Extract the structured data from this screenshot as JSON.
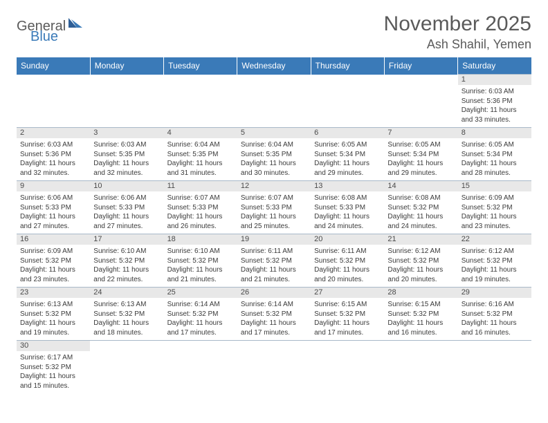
{
  "logo": {
    "main": "General",
    "accent": "Blue"
  },
  "title": "November 2025",
  "location": "Ash Shahil, Yemen",
  "colors": {
    "header_bg": "#3a7ab8",
    "header_text": "#ffffff",
    "daynum_bg": "#e8e8e8",
    "body_text": "#3a3a3a",
    "title_text": "#5a5a5a",
    "grid_line": "#a8b8c8",
    "page_bg": "#ffffff"
  },
  "typography": {
    "title_fontsize": 30,
    "location_fontsize": 18,
    "dayheader_fontsize": 12,
    "daynum_fontsize": 11,
    "body_fontsize": 10,
    "logo_fontsize": 20
  },
  "day_headers": [
    "Sunday",
    "Monday",
    "Tuesday",
    "Wednesday",
    "Thursday",
    "Friday",
    "Saturday"
  ],
  "weeks": [
    [
      null,
      null,
      null,
      null,
      null,
      null,
      {
        "n": "1",
        "sr": "Sunrise: 6:03 AM",
        "ss": "Sunset: 5:36 PM",
        "d1": "Daylight: 11 hours",
        "d2": "and 33 minutes."
      }
    ],
    [
      {
        "n": "2",
        "sr": "Sunrise: 6:03 AM",
        "ss": "Sunset: 5:36 PM",
        "d1": "Daylight: 11 hours",
        "d2": "and 32 minutes."
      },
      {
        "n": "3",
        "sr": "Sunrise: 6:03 AM",
        "ss": "Sunset: 5:35 PM",
        "d1": "Daylight: 11 hours",
        "d2": "and 32 minutes."
      },
      {
        "n": "4",
        "sr": "Sunrise: 6:04 AM",
        "ss": "Sunset: 5:35 PM",
        "d1": "Daylight: 11 hours",
        "d2": "and 31 minutes."
      },
      {
        "n": "5",
        "sr": "Sunrise: 6:04 AM",
        "ss": "Sunset: 5:35 PM",
        "d1": "Daylight: 11 hours",
        "d2": "and 30 minutes."
      },
      {
        "n": "6",
        "sr": "Sunrise: 6:05 AM",
        "ss": "Sunset: 5:34 PM",
        "d1": "Daylight: 11 hours",
        "d2": "and 29 minutes."
      },
      {
        "n": "7",
        "sr": "Sunrise: 6:05 AM",
        "ss": "Sunset: 5:34 PM",
        "d1": "Daylight: 11 hours",
        "d2": "and 29 minutes."
      },
      {
        "n": "8",
        "sr": "Sunrise: 6:05 AM",
        "ss": "Sunset: 5:34 PM",
        "d1": "Daylight: 11 hours",
        "d2": "and 28 minutes."
      }
    ],
    [
      {
        "n": "9",
        "sr": "Sunrise: 6:06 AM",
        "ss": "Sunset: 5:33 PM",
        "d1": "Daylight: 11 hours",
        "d2": "and 27 minutes."
      },
      {
        "n": "10",
        "sr": "Sunrise: 6:06 AM",
        "ss": "Sunset: 5:33 PM",
        "d1": "Daylight: 11 hours",
        "d2": "and 27 minutes."
      },
      {
        "n": "11",
        "sr": "Sunrise: 6:07 AM",
        "ss": "Sunset: 5:33 PM",
        "d1": "Daylight: 11 hours",
        "d2": "and 26 minutes."
      },
      {
        "n": "12",
        "sr": "Sunrise: 6:07 AM",
        "ss": "Sunset: 5:33 PM",
        "d1": "Daylight: 11 hours",
        "d2": "and 25 minutes."
      },
      {
        "n": "13",
        "sr": "Sunrise: 6:08 AM",
        "ss": "Sunset: 5:33 PM",
        "d1": "Daylight: 11 hours",
        "d2": "and 24 minutes."
      },
      {
        "n": "14",
        "sr": "Sunrise: 6:08 AM",
        "ss": "Sunset: 5:32 PM",
        "d1": "Daylight: 11 hours",
        "d2": "and 24 minutes."
      },
      {
        "n": "15",
        "sr": "Sunrise: 6:09 AM",
        "ss": "Sunset: 5:32 PM",
        "d1": "Daylight: 11 hours",
        "d2": "and 23 minutes."
      }
    ],
    [
      {
        "n": "16",
        "sr": "Sunrise: 6:09 AM",
        "ss": "Sunset: 5:32 PM",
        "d1": "Daylight: 11 hours",
        "d2": "and 23 minutes."
      },
      {
        "n": "17",
        "sr": "Sunrise: 6:10 AM",
        "ss": "Sunset: 5:32 PM",
        "d1": "Daylight: 11 hours",
        "d2": "and 22 minutes."
      },
      {
        "n": "18",
        "sr": "Sunrise: 6:10 AM",
        "ss": "Sunset: 5:32 PM",
        "d1": "Daylight: 11 hours",
        "d2": "and 21 minutes."
      },
      {
        "n": "19",
        "sr": "Sunrise: 6:11 AM",
        "ss": "Sunset: 5:32 PM",
        "d1": "Daylight: 11 hours",
        "d2": "and 21 minutes."
      },
      {
        "n": "20",
        "sr": "Sunrise: 6:11 AM",
        "ss": "Sunset: 5:32 PM",
        "d1": "Daylight: 11 hours",
        "d2": "and 20 minutes."
      },
      {
        "n": "21",
        "sr": "Sunrise: 6:12 AM",
        "ss": "Sunset: 5:32 PM",
        "d1": "Daylight: 11 hours",
        "d2": "and 20 minutes."
      },
      {
        "n": "22",
        "sr": "Sunrise: 6:12 AM",
        "ss": "Sunset: 5:32 PM",
        "d1": "Daylight: 11 hours",
        "d2": "and 19 minutes."
      }
    ],
    [
      {
        "n": "23",
        "sr": "Sunrise: 6:13 AM",
        "ss": "Sunset: 5:32 PM",
        "d1": "Daylight: 11 hours",
        "d2": "and 19 minutes."
      },
      {
        "n": "24",
        "sr": "Sunrise: 6:13 AM",
        "ss": "Sunset: 5:32 PM",
        "d1": "Daylight: 11 hours",
        "d2": "and 18 minutes."
      },
      {
        "n": "25",
        "sr": "Sunrise: 6:14 AM",
        "ss": "Sunset: 5:32 PM",
        "d1": "Daylight: 11 hours",
        "d2": "and 17 minutes."
      },
      {
        "n": "26",
        "sr": "Sunrise: 6:14 AM",
        "ss": "Sunset: 5:32 PM",
        "d1": "Daylight: 11 hours",
        "d2": "and 17 minutes."
      },
      {
        "n": "27",
        "sr": "Sunrise: 6:15 AM",
        "ss": "Sunset: 5:32 PM",
        "d1": "Daylight: 11 hours",
        "d2": "and 17 minutes."
      },
      {
        "n": "28",
        "sr": "Sunrise: 6:15 AM",
        "ss": "Sunset: 5:32 PM",
        "d1": "Daylight: 11 hours",
        "d2": "and 16 minutes."
      },
      {
        "n": "29",
        "sr": "Sunrise: 6:16 AM",
        "ss": "Sunset: 5:32 PM",
        "d1": "Daylight: 11 hours",
        "d2": "and 16 minutes."
      }
    ],
    [
      {
        "n": "30",
        "sr": "Sunrise: 6:17 AM",
        "ss": "Sunset: 5:32 PM",
        "d1": "Daylight: 11 hours",
        "d2": "and 15 minutes."
      },
      null,
      null,
      null,
      null,
      null,
      null
    ]
  ]
}
